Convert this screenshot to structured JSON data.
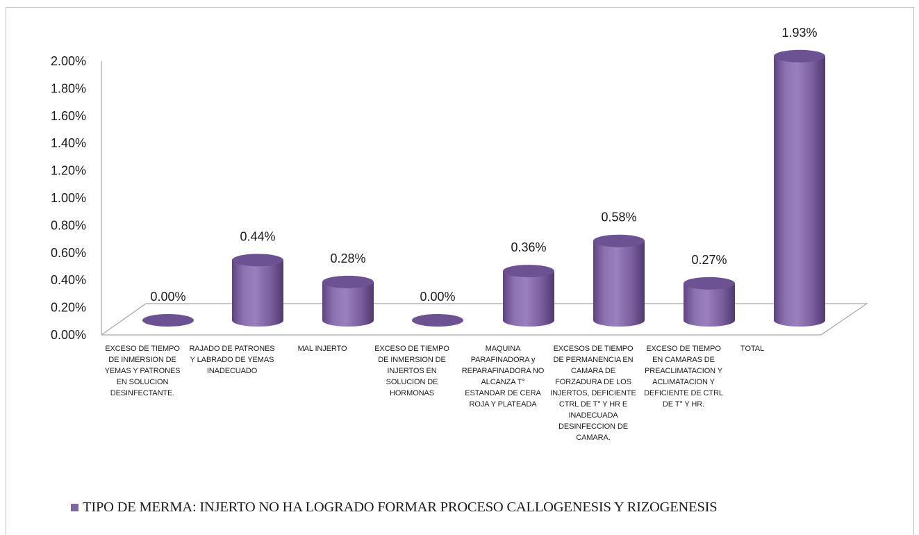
{
  "chart_data": {
    "type": "bar",
    "style": "3d-cylinder",
    "categories": [
      "EXCESO DE TIEMPO DE INMERSION DE YEMAS Y PATRONES EN SOLUCION DESINFECTANTE.",
      "RAJADO DE PATRONES Y LABRADO DE YEMAS INADECUADO",
      "MAL INJERTO",
      "EXCESO DE TIEMPO DE INMERSION DE INJERTOS EN SOLUCION DE HORMONAS",
      "MAQUINA PARAFINADORA y REPARAFINADORA NO ALCANZA T° ESTANDAR DE CERA ROJA Y PLATEADA",
      "EXCESOS DE TIEMPO DE PERMANENCIA EN CAMARA DE FORZADURA DE LOS INJERTOS, DEFICIENTE CTRL DE T° Y HR E INADECUADA DESINFECCION DE CAMARA.",
      "EXCESO DE TIEMPO EN CAMARAS DE PREACLIMATACION Y ACLIMATACION Y DEFICIENTE DE CTRL DE T° Y HR.",
      "TOTAL"
    ],
    "series": [
      {
        "name": "TIPO DE MERMA:  INJERTO NO HA LOGRADO FORMAR PROCESO CALLOGENESIS Y RIZOGENESIS",
        "values": [
          0.0,
          0.44,
          0.28,
          0.0,
          0.36,
          0.58,
          0.27,
          1.93
        ],
        "data_labels": [
          "0.00%",
          "0.44%",
          "0.28%",
          "0.00%",
          "0.36%",
          "0.58%",
          "0.27%",
          "1.93%"
        ],
        "color": "#8064a2"
      }
    ],
    "y_ticks": [
      "0.00%",
      "0.20%",
      "0.40%",
      "0.60%",
      "0.80%",
      "1.00%",
      "1.20%",
      "1.40%",
      "1.60%",
      "1.80%",
      "2.00%"
    ],
    "ylim": [
      0,
      2.0
    ],
    "legend_position": "bottom",
    "grid": false
  }
}
